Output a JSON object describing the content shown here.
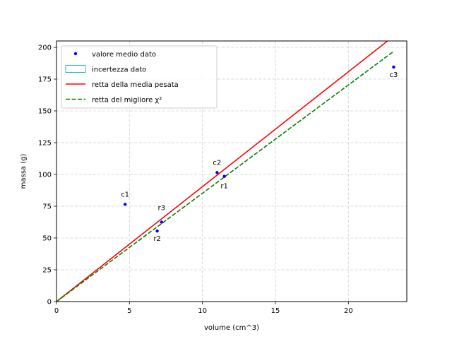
{
  "chart_data": {
    "type": "scatter",
    "title": "",
    "xlabel": "volume (cm^3)",
    "ylabel": "massa (g)",
    "xlim": [
      0,
      24
    ],
    "ylim": [
      0,
      205
    ],
    "xticks": [
      0,
      5,
      10,
      15,
      20
    ],
    "yticks": [
      0,
      25,
      50,
      75,
      100,
      125,
      150,
      175,
      200
    ],
    "grid": true,
    "legend_position": "top-left",
    "legend": [
      {
        "label": "valore medio dato",
        "style": "marker",
        "color": "#0000ff"
      },
      {
        "label": "incertezza dato",
        "style": "box",
        "color": "#17becf"
      },
      {
        "label": "retta della media pesata",
        "style": "solid-line",
        "color": "#ff0000"
      },
      {
        "label": "retta del migliore χ²",
        "style": "dashed-line",
        "color": "#008000"
      }
    ],
    "points": [
      {
        "label": "c1",
        "x": 4.7,
        "y": 76.5
      },
      {
        "label": "c2",
        "x": 11.0,
        "y": 101.5
      },
      {
        "label": "c3",
        "x": 23.1,
        "y": 184.5
      },
      {
        "label": "r1",
        "x": 11.5,
        "y": 98.5
      },
      {
        "label": "r2",
        "x": 6.9,
        "y": 55.5
      },
      {
        "label": "r3",
        "x": 7.2,
        "y": 62.5
      }
    ],
    "lines": [
      {
        "name": "retta della media pesata",
        "slope": 9.04,
        "x": [
          0,
          22.68
        ],
        "color": "#ff0000",
        "dash": false
      },
      {
        "name": "retta del migliore χ²",
        "slope": 8.52,
        "x": [
          0,
          23.1
        ],
        "color": "#008000",
        "dash": true
      }
    ]
  }
}
